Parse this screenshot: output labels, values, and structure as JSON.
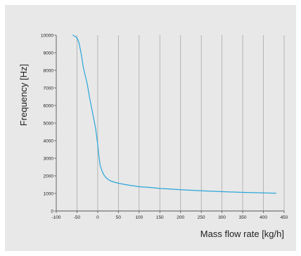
{
  "chart_data": {
    "type": "line",
    "title": "",
    "xlabel": "Mass flow rate [kg/h]",
    "ylabel": "Frequency [Hz]",
    "xlim": [
      -100,
      450
    ],
    "ylim": [
      0,
      10000
    ],
    "x_ticks": [
      "-100",
      "-50",
      "0",
      "50",
      "100",
      "150",
      "200",
      "250",
      "300",
      "350",
      "400",
      "450"
    ],
    "y_ticks": [
      "0",
      "1000",
      "2000",
      "3000",
      "4000",
      "5000",
      "6000",
      "7000",
      "8000",
      "9000",
      "10000"
    ],
    "grid": "vertical",
    "legend": "none",
    "series": [
      {
        "color": "#29a6d8",
        "x": [
          -60,
          -52,
          -48,
          -45,
          -42,
          -38,
          -35,
          -30,
          -25,
          -20,
          -15,
          -10,
          -5,
          0,
          3,
          6,
          10,
          15,
          20,
          25,
          30,
          40,
          50,
          60,
          70,
          80,
          90,
          100,
          120,
          140,
          150,
          175,
          200,
          250,
          300,
          350,
          400,
          430
        ],
        "y": [
          10000,
          9900,
          9750,
          9550,
          9200,
          8700,
          8200,
          7700,
          7200,
          6500,
          5900,
          5300,
          4700,
          3800,
          3100,
          2600,
          2300,
          2050,
          1900,
          1800,
          1720,
          1640,
          1580,
          1530,
          1490,
          1450,
          1420,
          1380,
          1350,
          1310,
          1280,
          1250,
          1210,
          1150,
          1100,
          1060,
          1030,
          1010
        ]
      }
    ]
  },
  "colors": {
    "background": "#e8e8e8",
    "grid": "#a8a8a8",
    "axis": "#555555",
    "series": "#29a6d8"
  }
}
